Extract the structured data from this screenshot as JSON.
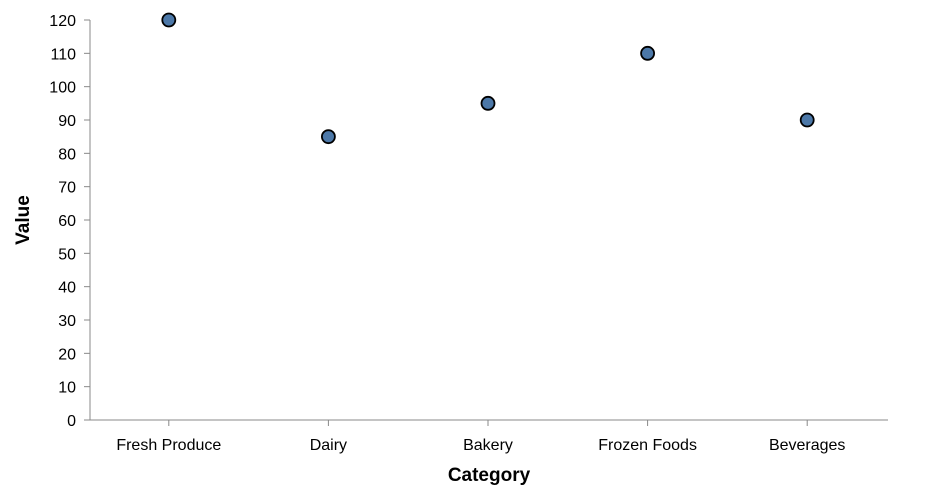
{
  "chart_data": {
    "type": "scatter",
    "categories": [
      "Fresh Produce",
      "Dairy",
      "Bakery",
      "Frozen Foods",
      "Beverages"
    ],
    "values": [
      120,
      85,
      95,
      110,
      90
    ],
    "xlabel": "Category",
    "ylabel": "Value",
    "ylim": [
      0,
      120
    ],
    "yticks": [
      0,
      10,
      20,
      30,
      40,
      50,
      60,
      70,
      80,
      90,
      100,
      110,
      120
    ],
    "grid": false,
    "point_color": "#4c78a8"
  }
}
